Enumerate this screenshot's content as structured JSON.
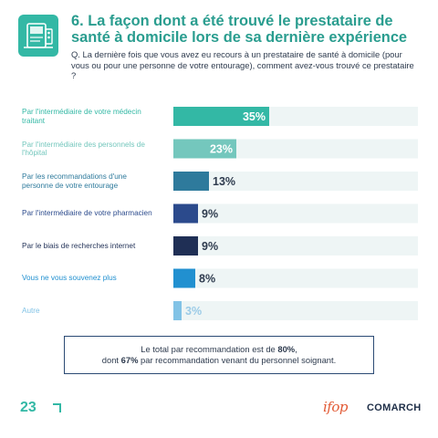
{
  "header": {
    "title": "6. La façon dont a été trouvé le prestataire de santé à domicile lors de sa dernière expérience",
    "question": "Q. La dernière fois que vous avez eu recours à un prestataire de santé à domicile (pour vous ou pour une personne de votre entourage), comment avez-vous trouvé ce prestataire ?",
    "icon": "medical-devices-icon"
  },
  "colors": {
    "accent": "#33b8a5",
    "title": "#2a9d8f",
    "track": "#eef5f5"
  },
  "chart_data": {
    "type": "bar",
    "orientation": "horizontal",
    "categories": [
      "Par l'intermédiaire de votre médecin traitant",
      "Par l'intermédiaire des personnels de l'hôpital",
      "Par les recommandations d'une personne de votre entourage",
      "Par l'intermédiaire de votre pharmacien",
      "Par le biais de recherches internet",
      "Vous ne vous souvenez plus",
      "Autre"
    ],
    "values": [
      35,
      23,
      13,
      9,
      9,
      8,
      3
    ],
    "value_labels": [
      "35%",
      "23%",
      "13%",
      "9%",
      "9%",
      "8%",
      "3%"
    ],
    "label_colors": [
      "#33b8a5",
      "#74c7bd",
      "#2e7a9c",
      "#2b4a8c",
      "#1f2f55",
      "#2190d0",
      "#82c3e6"
    ],
    "bar_colors": [
      "#33b8a5",
      "#74c7bd",
      "#2e7a9c",
      "#2b4a8c",
      "#1f2f55",
      "#2190d0",
      "#82c3e6"
    ],
    "value_colors": [
      "#ffffff",
      "#ffffff",
      "#2e3b4e",
      "#2e3b4e",
      "#2e3b4e",
      "#2e3b4e",
      "#9bcbe7"
    ],
    "xlim": [
      0,
      100
    ],
    "grid": false,
    "legend": "none"
  },
  "summary": {
    "line1_prefix": "Le total par recommandation est de ",
    "line1_bold": "80%",
    "line1_suffix": ",",
    "line2_prefix": "dont ",
    "line2_bold": "67%",
    "line2_suffix": " par recommandation venant du personnel soignant."
  },
  "footer": {
    "page_number": "23",
    "logo_ifop": "ifop",
    "logo_comarch": "COMARCH"
  }
}
